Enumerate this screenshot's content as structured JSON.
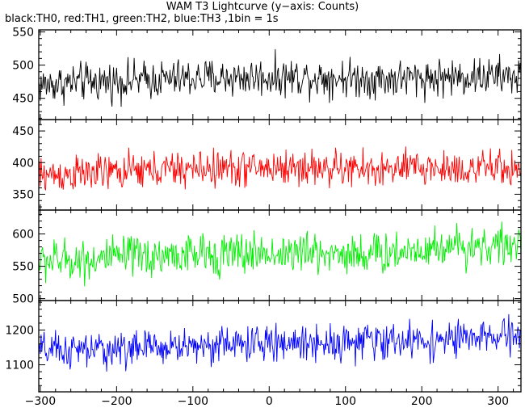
{
  "header": {
    "title": "WAM T3 Lightcurve (y−axis: Counts)",
    "subtitle": "black:TH0, red:TH1, green:TH2, blue:TH3 ,1bin = 1s"
  },
  "chart_data": [
    {
      "type": "line",
      "name": "TH0",
      "color": "#000000",
      "xlim": [
        -302,
        330
      ],
      "ylim": [
        418,
        553
      ],
      "x_ticks": [
        -300,
        -200,
        -100,
        0,
        100,
        200,
        300
      ],
      "y_ticks": [
        450,
        500,
        550
      ],
      "x": [
        -300,
        -250,
        -200,
        -150,
        -100,
        -50,
        0,
        50,
        100,
        150,
        200,
        250,
        300,
        330
      ],
      "y": [
        470,
        474,
        476,
        478,
        480,
        481,
        482,
        482,
        481,
        479,
        481,
        482,
        483,
        483
      ],
      "noise_amplitude": 25
    },
    {
      "type": "line",
      "name": "TH1",
      "color": "#ff0000",
      "xlim": [
        -302,
        330
      ],
      "ylim": [
        325,
        468
      ],
      "x_ticks": [
        -300,
        -200,
        -100,
        0,
        100,
        200,
        300
      ],
      "y_ticks": [
        350,
        400,
        450
      ],
      "x": [
        -300,
        -250,
        -200,
        -150,
        -100,
        -50,
        0,
        50,
        100,
        150,
        200,
        250,
        300,
        330
      ],
      "y": [
        380,
        382,
        385,
        388,
        390,
        391,
        392,
        392,
        390,
        388,
        392,
        390,
        391,
        391
      ],
      "noise_amplitude": 25
    },
    {
      "type": "line",
      "name": "TH2",
      "color": "#00ee00",
      "xlim": [
        -302,
        330
      ],
      "ylim": [
        497,
        637
      ],
      "x_ticks": [
        -300,
        -200,
        -100,
        0,
        100,
        200,
        300
      ],
      "y_ticks": [
        500,
        550,
        600
      ],
      "x": [
        -300,
        -250,
        -200,
        -150,
        -100,
        -50,
        0,
        50,
        100,
        150,
        200,
        250,
        300,
        330
      ],
      "y": [
        558,
        560,
        563,
        566,
        568,
        569,
        570,
        571,
        570,
        569,
        578,
        582,
        582,
        580
      ],
      "noise_amplitude": 28
    },
    {
      "type": "line",
      "name": "TH3",
      "color": "#0000ff",
      "xlim": [
        -302,
        330
      ],
      "ylim": [
        1022,
        1285
      ],
      "x_ticks": [
        -300,
        -200,
        -100,
        0,
        100,
        200,
        300
      ],
      "y_ticks": [
        1100,
        1200
      ],
      "x": [
        -300,
        -250,
        -200,
        -150,
        -100,
        -50,
        0,
        50,
        100,
        150,
        200,
        250,
        300,
        330
      ],
      "y": [
        1140,
        1140,
        1145,
        1150,
        1155,
        1160,
        1160,
        1165,
        1165,
        1168,
        1170,
        1172,
        1180,
        1180
      ],
      "noise_amplitude": 45
    }
  ]
}
